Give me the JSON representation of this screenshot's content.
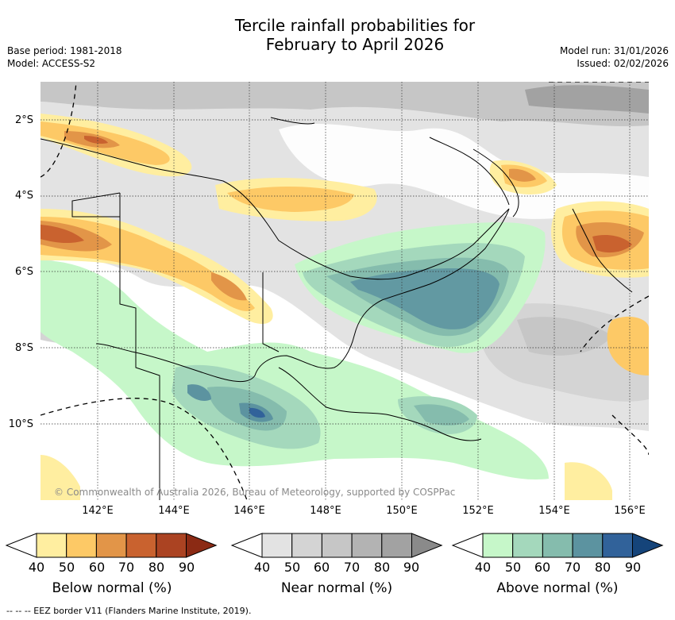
{
  "title_line1": "Tercile rainfall probabilities for",
  "title_line2": "February to April 2026",
  "base_period": "Base period: 1981-2018",
  "model": "Model: ACCESS-S2",
  "model_run": "Model run: 31/01/2026",
  "issued": "Issued: 02/02/2026",
  "copyright": "© Commonwealth of Australia 2026, Bureau of Meteorology, supported by COSPPac",
  "footnote": "--  --  -- EEZ border V11 (Flanders Marine Institute, 2019).",
  "lat_labels": [
    "2°S",
    "4°S",
    "6°S",
    "8°S",
    "10°S"
  ],
  "lon_labels": [
    "142°E",
    "144°E",
    "146°E",
    "148°E",
    "150°E",
    "152°E",
    "154°E",
    "156°E"
  ],
  "colorbars": [
    {
      "label": "Below normal (%)",
      "ticks": [
        "40",
        "50",
        "60",
        "70",
        "80",
        "90"
      ],
      "colors": [
        "#ffeea0",
        "#fdc966",
        "#e29548",
        "#c9622f",
        "#ab4322",
        "#8b2a14"
      ]
    },
    {
      "label": "Near normal (%)",
      "ticks": [
        "40",
        "50",
        "60",
        "70",
        "80",
        "90"
      ],
      "colors": [
        "#e3e3e3",
        "#d4d4d4",
        "#c6c6c6",
        "#b3b3b3",
        "#a2a2a2",
        "#8a8a8a"
      ]
    },
    {
      "label": "Above normal (%)",
      "ticks": [
        "40",
        "50",
        "60",
        "70",
        "80",
        "90"
      ],
      "colors": [
        "#c6f7c9",
        "#a4d8bc",
        "#85bcad",
        "#5c93a0",
        "#31629a",
        "#15447a"
      ]
    }
  ]
}
